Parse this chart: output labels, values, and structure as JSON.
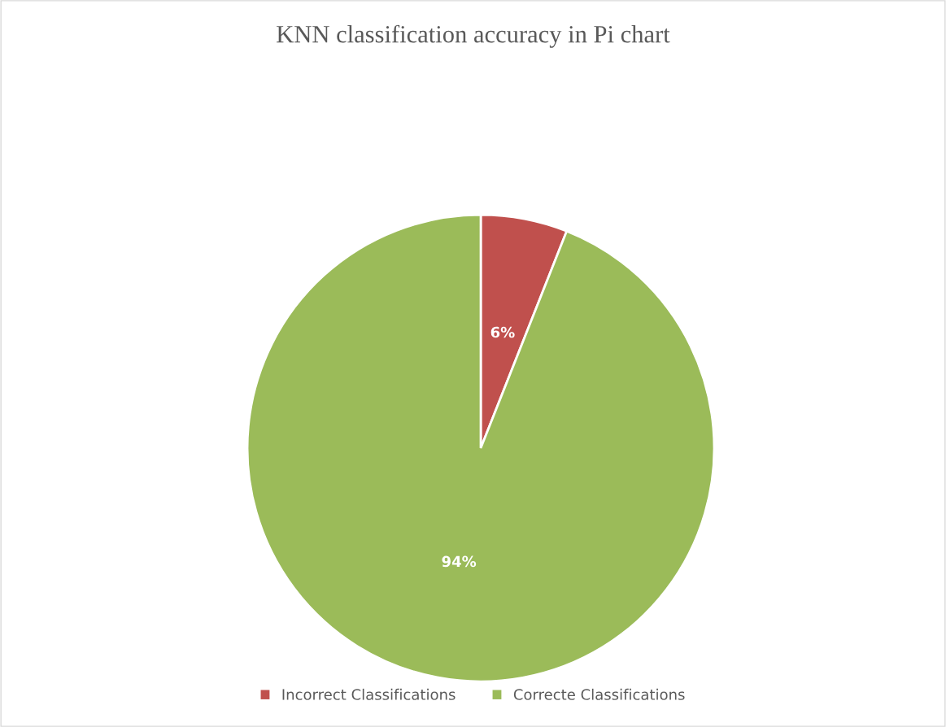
{
  "chart_data": {
    "type": "pie",
    "title": "KNN classification accuracy in Pi chart",
    "categories": [
      "Incorrect Classifications",
      "Correcte Classifications"
    ],
    "values": [
      6,
      94
    ],
    "colors": [
      "#c0504d",
      "#9bbb59"
    ],
    "value_labels": [
      "6%",
      "94%"
    ],
    "legend": "bottom"
  }
}
